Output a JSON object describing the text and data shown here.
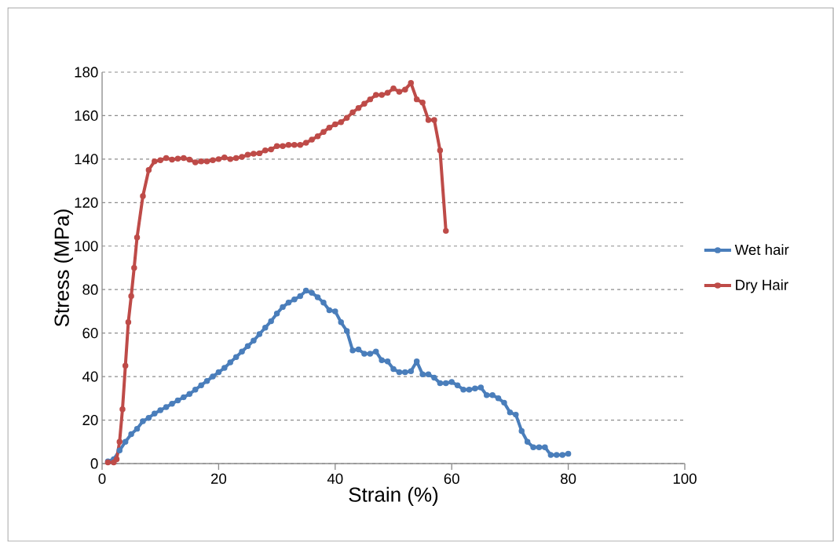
{
  "chart_data": {
    "type": "line",
    "xlabel": "Strain (%)",
    "ylabel": "Stress (MPa)",
    "xlim": [
      0,
      100
    ],
    "ylim": [
      0,
      180
    ],
    "xticks": [
      0,
      20,
      40,
      60,
      80,
      100
    ],
    "yticks": [
      0,
      20,
      40,
      60,
      80,
      100,
      120,
      140,
      160,
      180
    ],
    "grid": "y",
    "legend": "right",
    "marker": "circle",
    "line_style": "solid",
    "series": [
      {
        "name": "Wet hair",
        "color": "#4a7ebb",
        "x": [
          1,
          2,
          3,
          4,
          5,
          6,
          7,
          8,
          9,
          10,
          11,
          12,
          13,
          14,
          15,
          16,
          17,
          18,
          19,
          20,
          21,
          22,
          23,
          24,
          25,
          26,
          27,
          28,
          29,
          30,
          31,
          32,
          33,
          34,
          35,
          36,
          37,
          38,
          39,
          40,
          41,
          42,
          43,
          44,
          45,
          46,
          47,
          48,
          49,
          50,
          51,
          52,
          53,
          54,
          55,
          56,
          57,
          58,
          59,
          60,
          61,
          62,
          63,
          64,
          65,
          66,
          67,
          68,
          69,
          70,
          71,
          72,
          73,
          74,
          75,
          76,
          77,
          78,
          79,
          80
        ],
        "values": [
          1,
          2,
          6,
          10,
          13.5,
          16,
          19.5,
          21,
          23,
          24.5,
          26,
          27.5,
          29,
          30.5,
          32,
          34,
          36,
          38,
          40,
          42,
          44,
          46.5,
          49,
          51.5,
          54,
          56.5,
          59.5,
          62.5,
          65.5,
          69,
          72,
          74,
          75.5,
          77,
          79.5,
          78.5,
          76.5,
          74,
          70.5,
          70,
          65,
          61,
          52,
          52.5,
          50.5,
          50.5,
          51.5,
          47.5,
          47,
          43.5,
          42,
          42,
          42.5,
          47,
          41,
          41,
          39.5,
          37,
          37,
          37.5,
          36,
          34,
          34,
          34.5,
          35,
          31.5,
          31.5,
          30,
          28,
          23.5,
          22.5,
          15,
          10,
          7.5,
          7.5,
          7.5,
          4,
          4,
          4,
          4.5
        ]
      },
      {
        "name": "Dry Hair",
        "color": "#be4b48",
        "x": [
          1,
          2,
          2.5,
          3,
          3.5,
          4,
          4.5,
          5,
          5.5,
          6,
          7,
          8,
          9,
          10,
          11,
          12,
          13,
          14,
          15,
          16,
          17,
          18,
          19,
          20,
          21,
          22,
          23,
          24,
          25,
          26,
          27,
          28,
          29,
          30,
          31,
          32,
          33,
          34,
          35,
          36,
          37,
          38,
          39,
          40,
          41,
          42,
          43,
          44,
          45,
          46,
          47,
          48,
          49,
          50,
          51,
          52,
          53,
          54,
          55,
          56,
          57,
          58,
          59
        ],
        "values": [
          0.5,
          0.5,
          2,
          10,
          25,
          45,
          65,
          77,
          90,
          104,
          123,
          135,
          139,
          139.5,
          140.5,
          139.8,
          140.2,
          140.5,
          139.8,
          138.5,
          139,
          139,
          139.5,
          140,
          140.8,
          140,
          140.5,
          141,
          142,
          142.5,
          142.7,
          144,
          144.5,
          146,
          146,
          146.5,
          146.5,
          146.5,
          147.5,
          149,
          150.5,
          152.5,
          154.5,
          156,
          157,
          159,
          161.5,
          163.5,
          165.5,
          167.5,
          169.5,
          169.5,
          170.5,
          172.5,
          171,
          172,
          175,
          167.5,
          166,
          158,
          158,
          144,
          107
        ]
      }
    ]
  }
}
